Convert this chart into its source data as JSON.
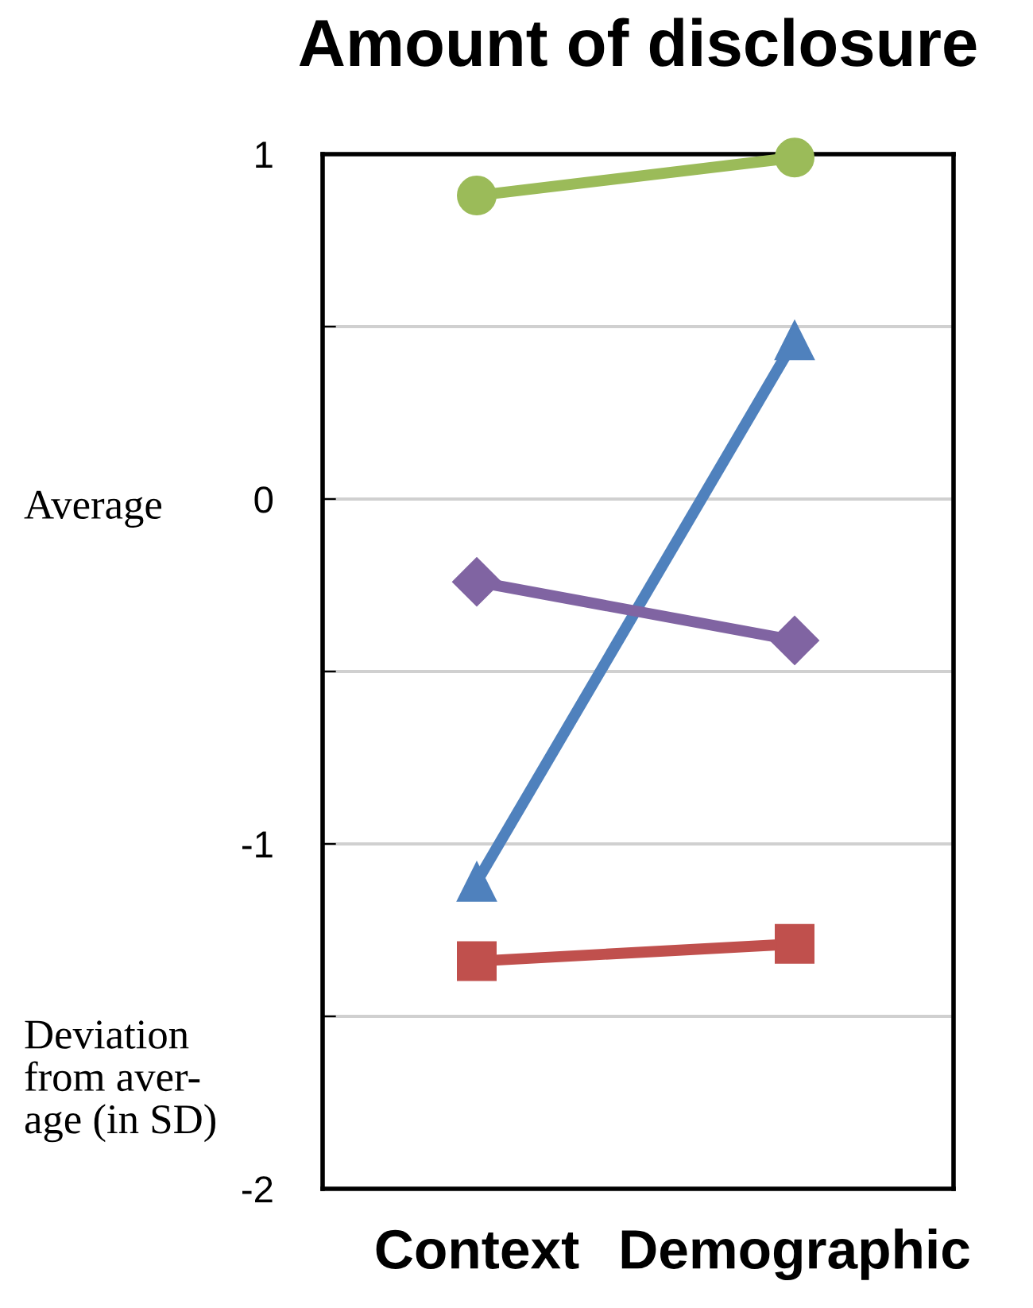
{
  "chart_data": {
    "type": "line",
    "title": "Amount of disclosure",
    "categories": [
      "Context",
      "Demographic"
    ],
    "series": [
      {
        "color": "#9bbb59",
        "marker": "circle",
        "values": [
          0.88,
          0.99
        ]
      },
      {
        "color": "#4f81bd",
        "marker": "triangle",
        "values": [
          -1.11,
          0.46
        ]
      },
      {
        "color": "#8064a2",
        "marker": "diamond",
        "values": [
          -0.24,
          -0.41
        ]
      },
      {
        "color": "#c0504d",
        "marker": "square",
        "values": [
          -1.34,
          -1.29
        ]
      }
    ],
    "ylim": [
      -2,
      1
    ],
    "yticks": [
      -2,
      {
        "value": -1.5,
        "label": null
      },
      -1,
      {
        "value": -0.5,
        "label": null
      },
      0,
      {
        "value": 0.5,
        "label": null
      },
      1
    ],
    "grid": "y",
    "legend": false,
    "line_style": "solid",
    "annotations": [
      "Average",
      "Deviation\nfrom aver-\nage (in SD)"
    ]
  }
}
